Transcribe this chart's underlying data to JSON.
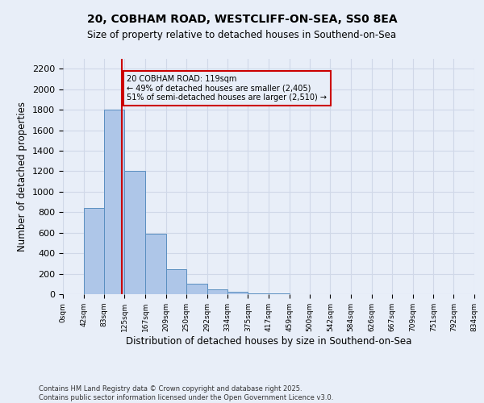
{
  "title1": "20, COBHAM ROAD, WESTCLIFF-ON-SEA, SS0 8EA",
  "title2": "Size of property relative to detached houses in Southend-on-Sea",
  "xlabel": "Distribution of detached houses by size in Southend-on-Sea",
  "ylabel": "Number of detached properties",
  "footnote1": "Contains HM Land Registry data © Crown copyright and database right 2025.",
  "footnote2": "Contains public sector information licensed under the Open Government Licence v3.0.",
  "property_size": 119,
  "annotation_line1": "20 COBHAM ROAD: 119sqm",
  "annotation_line2": "← 49% of detached houses are smaller (2,405)",
  "annotation_line3": "51% of semi-detached houses are larger (2,510) →",
  "bin_edges": [
    0,
    42,
    83,
    125,
    167,
    209,
    250,
    292,
    334,
    375,
    417,
    459,
    500,
    542,
    584,
    626,
    667,
    709,
    751,
    792,
    834
  ],
  "bar_heights": [
    3,
    840,
    1800,
    1200,
    590,
    240,
    100,
    45,
    20,
    10,
    5,
    3,
    2,
    1,
    1,
    0,
    0,
    0,
    0,
    0
  ],
  "bar_color": "#aec6e8",
  "bar_edgecolor": "#5a8fc0",
  "redline_color": "#cc0000",
  "ylim": [
    0,
    2300
  ],
  "yticks": [
    0,
    200,
    400,
    600,
    800,
    1000,
    1200,
    1400,
    1600,
    1800,
    2000,
    2200
  ],
  "grid_color": "#d0d8e8",
  "bg_color": "#e8eef8",
  "annotation_box_edgecolor": "#cc0000",
  "xlim": [
    0,
    834
  ]
}
